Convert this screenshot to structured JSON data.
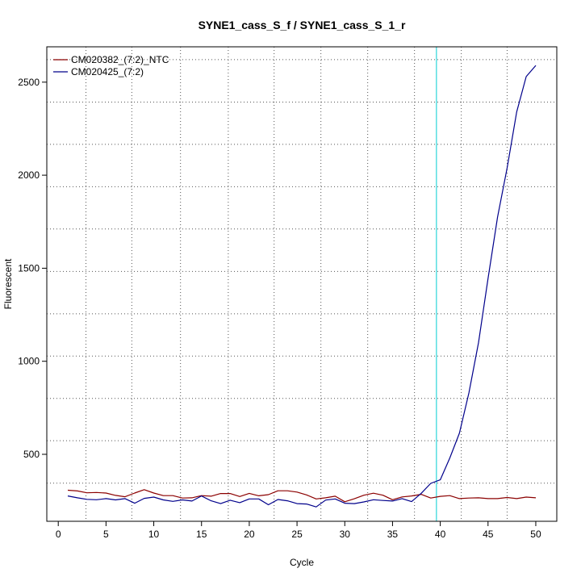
{
  "chart_data": {
    "type": "line",
    "title": "SYNE1_cass_S_f / SYNE1_cass_S_1_r",
    "xlabel": "Cycle",
    "ylabel": "Fluorescent",
    "xlim": [
      -1.2,
      52.2
    ],
    "ylim": [
      140,
      2690
    ],
    "x_ticks": [
      0,
      5,
      10,
      15,
      20,
      25,
      30,
      35,
      40,
      45,
      50
    ],
    "x_tick_labels": [
      "0",
      "5",
      "10",
      "15",
      "20",
      "25",
      "30",
      "35",
      "40",
      "45",
      "50"
    ],
    "y_ticks": [
      500,
      1000,
      1500,
      2000,
      2500
    ],
    "y_tick_labels": [
      "500",
      "1000",
      "1500",
      "2000",
      "2500"
    ],
    "x_gridlines": [
      2.9,
      7.7,
      12.8,
      17.8,
      22.6,
      27.5,
      32.4,
      37.3,
      42.2,
      47.0
    ],
    "y_gridlines": [
      345,
      573,
      800,
      1028,
      1255,
      1483,
      1711,
      1938,
      2166,
      2393,
      2621
    ],
    "grid": true,
    "threshold_x": 39.6,
    "threshold_color": "#00CED1",
    "legend_position": "top-left",
    "x": [
      1,
      2,
      3,
      4,
      5,
      6,
      7,
      8,
      9,
      10,
      11,
      12,
      13,
      14,
      15,
      16,
      17,
      18,
      19,
      20,
      21,
      22,
      23,
      24,
      25,
      26,
      27,
      28,
      29,
      30,
      31,
      32,
      33,
      34,
      35,
      36,
      37,
      38,
      39,
      40,
      41,
      42,
      43,
      44,
      45,
      46,
      47,
      48,
      49,
      50
    ],
    "series": [
      {
        "name": "CM020382_(7:2)_NTC",
        "color": "#8B0000",
        "values": [
          307,
          303,
          293,
          295,
          292,
          279,
          272,
          292,
          310,
          292,
          278,
          278,
          265,
          266,
          278,
          275,
          289,
          289,
          273,
          290,
          277,
          283,
          304,
          304,
          297,
          282,
          260,
          266,
          275,
          245,
          261,
          280,
          291,
          280,
          256,
          271,
          276,
          285,
          265,
          274,
          278,
          262,
          265,
          266,
          262,
          262,
          268,
          262,
          270,
          266
        ]
      },
      {
        "name": "CM020425_(7:2)",
        "color": "#00008B",
        "values": [
          276,
          266,
          258,
          256,
          262,
          255,
          262,
          237,
          263,
          270,
          255,
          247,
          255,
          249,
          276,
          250,
          235,
          253,
          240,
          260,
          260,
          229,
          257,
          250,
          235,
          233,
          217,
          254,
          260,
          237,
          235,
          244,
          256,
          252,
          249,
          262,
          246,
          290,
          344,
          363,
          480,
          613,
          830,
          1100,
          1445,
          1775,
          2040,
          2340,
          2530,
          2590
        ]
      }
    ]
  }
}
